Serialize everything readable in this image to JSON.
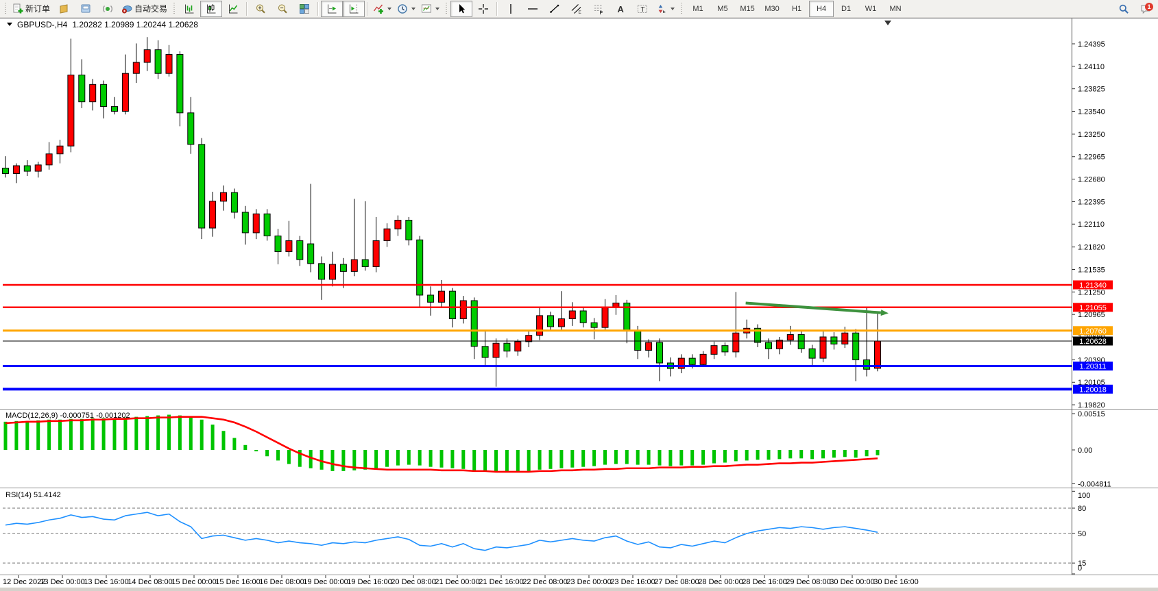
{
  "toolbar": {
    "sections": [
      {
        "groups": [
          [
            {
              "name": "new-order",
              "icon": "new-order",
              "label": "新订单"
            },
            {
              "name": "new-chart",
              "icon": "yellow-note"
            },
            {
              "name": "metaeditor",
              "icon": "editor"
            },
            {
              "name": "signals",
              "icon": "signals"
            },
            {
              "name": "autotrading",
              "icon": "autotrading",
              "label": "自动交易"
            }
          ]
        ]
      },
      {
        "groups": [
          [
            {
              "name": "bar-chart-type",
              "icon": "bars"
            },
            {
              "name": "candlestick-chart-type",
              "icon": "candles",
              "active": true
            },
            {
              "name": "line-chart-type",
              "icon": "line"
            }
          ],
          [
            {
              "name": "zoom-in",
              "icon": "zoom-in"
            },
            {
              "name": "zoom-out",
              "icon": "zoom-out"
            },
            {
              "name": "tile-windows",
              "icon": "tile"
            }
          ],
          [
            {
              "name": "auto-scroll",
              "icon": "autoscroll",
              "active": true
            },
            {
              "name": "chart-shift",
              "icon": "chartshift",
              "active": true
            }
          ],
          [
            {
              "name": "indicators",
              "icon": "indicators",
              "dropdown": true
            },
            {
              "name": "periods",
              "icon": "clock",
              "dropdown": true
            },
            {
              "name": "templates",
              "icon": "template",
              "dropdown": true
            }
          ]
        ]
      },
      {
        "groups": [
          [
            {
              "name": "cursor",
              "icon": "cursor",
              "active": true
            },
            {
              "name": "crosshair",
              "icon": "crosshair"
            }
          ],
          [
            {
              "name": "vertical-line",
              "icon": "vline"
            },
            {
              "name": "horizontal-line",
              "icon": "hline"
            },
            {
              "name": "trendline",
              "icon": "trendline"
            },
            {
              "name": "equidistant-channel",
              "icon": "channel"
            },
            {
              "name": "fibonacci",
              "icon": "fibo"
            },
            {
              "name": "text",
              "icon": "text-a"
            },
            {
              "name": "text-label",
              "icon": "label-t"
            },
            {
              "name": "arrows",
              "icon": "arrows",
              "dropdown": true
            }
          ]
        ]
      },
      {
        "groups": [
          [
            {
              "name": "tf-m1",
              "label": "M1",
              "tf": true
            },
            {
              "name": "tf-m5",
              "label": "M5",
              "tf": true
            },
            {
              "name": "tf-m15",
              "label": "M15",
              "tf": true
            },
            {
              "name": "tf-m30",
              "label": "M30",
              "tf": true
            },
            {
              "name": "tf-h1",
              "label": "H1",
              "tf": true
            },
            {
              "name": "tf-h4",
              "label": "H4",
              "tf": true,
              "active": true
            },
            {
              "name": "tf-d1",
              "label": "D1",
              "tf": true
            },
            {
              "name": "tf-w1",
              "label": "W1",
              "tf": true
            },
            {
              "name": "tf-mn",
              "label": "MN",
              "tf": true
            }
          ]
        ]
      }
    ],
    "right": [
      {
        "name": "search",
        "icon": "search"
      },
      {
        "name": "notifications",
        "icon": "chat",
        "badge": "1"
      }
    ]
  },
  "chart": {
    "title_symbol": "GBPUSD-,H4",
    "title_ohlc": "1.20282 1.20989 1.20244 1.20628"
  },
  "chart_data": {
    "type": "candlestick",
    "symbol": "GBPUSD-",
    "timeframe": "H4",
    "current": {
      "open": "1.20282",
      "high": "1.20989",
      "low": "1.20244",
      "close": "1.20628"
    },
    "colors": {
      "bull": "#FF0000",
      "bear": "#00CC00",
      "wick": "#000000",
      "macd_histogram": "#00C400",
      "macd_signal": "#FF0000",
      "rsi_line": "#1E90FF",
      "arrow": "#3E923E"
    },
    "price_axis_ticks": [
      "1.24395",
      "1.24110",
      "1.23825",
      "1.23540",
      "1.23250",
      "1.22965",
      "1.22680",
      "1.22395",
      "1.22110",
      "1.21820",
      "1.21535",
      "1.21250",
      "1.20965",
      "1.20680",
      "1.20390",
      "1.20105",
      "1.19820"
    ],
    "time_labels": [
      "12 Dec 2022",
      "13 Dec 00:00",
      "13 Dec 16:00",
      "14 Dec 08:00",
      "15 Dec 00:00",
      "15 Dec 16:00",
      "16 Dec 08:00",
      "19 Dec 00:00",
      "19 Dec 16:00",
      "20 Dec 08:00",
      "21 Dec 00:00",
      "21 Dec 16:00",
      "22 Dec 08:00",
      "23 Dec 00:00",
      "23 Dec 16:00",
      "27 Dec 08:00",
      "28 Dec 00:00",
      "28 Dec 16:00",
      "29 Dec 08:00",
      "30 Dec 00:00",
      "30 Dec 16:00"
    ],
    "levels": [
      {
        "price": 1.2134,
        "label": "1.21340",
        "color": "#FF0000",
        "width": 2.5
      },
      {
        "price": 1.21055,
        "label": "1.21055",
        "color": "#FF0000",
        "width": 2.5
      },
      {
        "price": 1.2076,
        "label": "1.20760",
        "color": "#FFA500",
        "width": 3
      },
      {
        "price": 1.20628,
        "label": "1.20628",
        "color": "#000000",
        "width": 1
      },
      {
        "price": 1.20311,
        "label": "1.20311",
        "color": "#0000FF",
        "width": 3
      },
      {
        "price": 1.20018,
        "label": "1.20018",
        "color": "#0000FF",
        "width": 4
      }
    ],
    "candles": [
      [
        1.2282,
        1.2297,
        1.227,
        1.2275
      ],
      [
        1.2275,
        1.2288,
        1.2263,
        1.2285
      ],
      [
        1.2285,
        1.2292,
        1.2272,
        1.2278
      ],
      [
        1.2278,
        1.229,
        1.227,
        1.2286
      ],
      [
        1.2286,
        1.2315,
        1.228,
        1.23
      ],
      [
        1.23,
        1.2318,
        1.2288,
        1.231
      ],
      [
        1.231,
        1.2446,
        1.2302,
        1.24
      ],
      [
        1.24,
        1.242,
        1.2358,
        1.2366
      ],
      [
        1.2366,
        1.2395,
        1.2355,
        1.2388
      ],
      [
        1.2388,
        1.2393,
        1.2345,
        1.236
      ],
      [
        1.236,
        1.2372,
        1.235,
        1.2354
      ],
      [
        1.2354,
        1.2426,
        1.235,
        1.2402
      ],
      [
        1.2402,
        1.244,
        1.239,
        1.2416
      ],
      [
        1.2416,
        1.2448,
        1.2405,
        1.2432
      ],
      [
        1.2432,
        1.2444,
        1.2395,
        1.2402
      ],
      [
        1.2402,
        1.2438,
        1.2398,
        1.2426
      ],
      [
        1.2426,
        1.243,
        1.2335,
        1.2352
      ],
      [
        1.2352,
        1.2372,
        1.23,
        1.2312
      ],
      [
        1.2312,
        1.232,
        1.2192,
        1.2206
      ],
      [
        1.2206,
        1.2252,
        1.2195,
        1.224
      ],
      [
        1.224,
        1.226,
        1.2228,
        1.2251
      ],
      [
        1.2251,
        1.2256,
        1.2218,
        1.2226
      ],
      [
        1.2226,
        1.2234,
        1.2185,
        1.22
      ],
      [
        1.22,
        1.223,
        1.2192,
        1.2224
      ],
      [
        1.2224,
        1.223,
        1.219,
        1.2196
      ],
      [
        1.2196,
        1.2205,
        1.216,
        1.2176
      ],
      [
        1.2176,
        1.2215,
        1.217,
        1.219
      ],
      [
        1.219,
        1.2196,
        1.2158,
        1.2166
      ],
      [
        1.2186,
        1.2262,
        1.215,
        1.2161
      ],
      [
        1.2161,
        1.217,
        1.2115,
        1.2141
      ],
      [
        1.2141,
        1.2176,
        1.2132,
        1.216
      ],
      [
        1.216,
        1.2168,
        1.213,
        1.2151
      ],
      [
        1.2151,
        1.2243,
        1.2145,
        1.2166
      ],
      [
        1.2166,
        1.224,
        1.2152,
        1.2157
      ],
      [
        1.2157,
        1.222,
        1.215,
        1.219
      ],
      [
        1.219,
        1.2212,
        1.2182,
        1.2205
      ],
      [
        1.2205,
        1.2222,
        1.2196,
        1.2216
      ],
      [
        1.2216,
        1.222,
        1.2184,
        1.2191
      ],
      [
        1.2191,
        1.2196,
        1.2105,
        1.2121
      ],
      [
        1.2121,
        1.2132,
        1.2095,
        1.2112
      ],
      [
        1.2112,
        1.214,
        1.2105,
        1.2126
      ],
      [
        1.2126,
        1.213,
        1.208,
        1.2091
      ],
      [
        1.2091,
        1.212,
        1.2085,
        1.2114
      ],
      [
        1.2114,
        1.2118,
        1.204,
        1.2056
      ],
      [
        1.2056,
        1.2075,
        1.203,
        1.2042
      ],
      [
        1.2042,
        1.2066,
        1.2005,
        1.206
      ],
      [
        1.206,
        1.2066,
        1.2042,
        1.205
      ],
      [
        1.205,
        1.2065,
        1.2044,
        1.2062
      ],
      [
        1.2062,
        1.2076,
        1.2055,
        1.207
      ],
      [
        1.207,
        1.2106,
        1.2064,
        1.2095
      ],
      [
        1.2095,
        1.21,
        1.2075,
        1.2081
      ],
      [
        1.2081,
        1.2126,
        1.2076,
        1.2091
      ],
      [
        1.2091,
        1.2112,
        1.2082,
        1.2101
      ],
      [
        1.2101,
        1.2106,
        1.208,
        1.2086
      ],
      [
        1.2086,
        1.2092,
        1.2065,
        1.208
      ],
      [
        1.208,
        1.2116,
        1.2076,
        1.2106
      ],
      [
        1.2106,
        1.2121,
        1.2096,
        1.2111
      ],
      [
        1.2111,
        1.2115,
        1.206,
        1.2076
      ],
      [
        1.2076,
        1.2082,
        1.204,
        1.2051
      ],
      [
        1.2051,
        1.2065,
        1.2042,
        1.2061
      ],
      [
        1.2061,
        1.2066,
        1.2012,
        1.2035
      ],
      [
        1.2035,
        1.2042,
        1.2018,
        1.2028
      ],
      [
        1.2028,
        1.2046,
        1.2022,
        1.2041
      ],
      [
        1.2041,
        1.2046,
        1.2028,
        1.2033
      ],
      [
        1.2033,
        1.205,
        1.203,
        1.2046
      ],
      [
        1.2046,
        1.2062,
        1.204,
        1.2057
      ],
      [
        1.2057,
        1.2061,
        1.2044,
        1.2049
      ],
      [
        1.2049,
        1.2125,
        1.2042,
        1.2073
      ],
      [
        1.2073,
        1.209,
        1.2066,
        1.2079
      ],
      [
        1.2079,
        1.2084,
        1.2055,
        1.2061
      ],
      [
        1.2061,
        1.2066,
        1.204,
        1.2053
      ],
      [
        1.2053,
        1.2068,
        1.2046,
        1.2064
      ],
      [
        1.2064,
        1.2082,
        1.2058,
        1.2071
      ],
      [
        1.2071,
        1.2076,
        1.2048,
        1.2053
      ],
      [
        1.2053,
        1.2058,
        1.203,
        1.2041
      ],
      [
        1.2041,
        1.2076,
        1.2036,
        1.2068
      ],
      [
        1.2068,
        1.2074,
        1.2052,
        1.2059
      ],
      [
        1.2059,
        1.2081,
        1.2054,
        1.2073
      ],
      [
        1.2073,
        1.2078,
        1.2012,
        1.2039
      ],
      [
        1.2039,
        1.2106,
        1.2018,
        1.2027
      ],
      [
        1.20282,
        1.20989,
        1.20244,
        1.20628
      ]
    ],
    "macd": {
      "label": "MACD(12,26,9) -0.000751 -0.001202",
      "value_main": "-0.000751",
      "value_signal": "-0.001202",
      "axis_labels": [
        "0.00515",
        "0.00",
        "-0.004811"
      ],
      "histogram": [
        0.004,
        0.0041,
        0.0041,
        0.0042,
        0.0043,
        0.0043,
        0.0044,
        0.0044,
        0.0045,
        0.0045,
        0.0045,
        0.0046,
        0.0047,
        0.0048,
        0.0049,
        0.005,
        0.0049,
        0.0047,
        0.0043,
        0.0036,
        0.0027,
        0.0017,
        0.0007,
        -0.0002,
        -0.0009,
        -0.0015,
        -0.002,
        -0.0024,
        -0.0026,
        -0.0028,
        -0.003,
        -0.003,
        -0.0029,
        -0.0028,
        -0.0026,
        -0.0024,
        -0.0022,
        -0.0021,
        -0.0022,
        -0.0024,
        -0.0025,
        -0.0026,
        -0.0027,
        -0.0029,
        -0.0031,
        -0.0032,
        -0.0032,
        -0.0031,
        -0.003,
        -0.0028,
        -0.0027,
        -0.0026,
        -0.0025,
        -0.0024,
        -0.0023,
        -0.0021,
        -0.002,
        -0.002,
        -0.0021,
        -0.0021,
        -0.0022,
        -0.0023,
        -0.0022,
        -0.0022,
        -0.0021,
        -0.0019,
        -0.0018,
        -0.0016,
        -0.0015,
        -0.0014,
        -0.0014,
        -0.0013,
        -0.0012,
        -0.0012,
        -0.0013,
        -0.0012,
        -0.0011,
        -0.001,
        -0.0011,
        -0.0009,
        -0.00075
      ],
      "signal": [
        0.0038,
        0.0039,
        0.004,
        0.004,
        0.0041,
        0.0041,
        0.0042,
        0.0042,
        0.0043,
        0.0043,
        0.0044,
        0.0044,
        0.0045,
        0.0045,
        0.0046,
        0.0046,
        0.0047,
        0.0047,
        0.0047,
        0.0045,
        0.0043,
        0.0039,
        0.0033,
        0.0026,
        0.0018,
        0.001,
        0.0002,
        -0.0005,
        -0.0011,
        -0.0016,
        -0.002,
        -0.0023,
        -0.0025,
        -0.0026,
        -0.0027,
        -0.0028,
        -0.0028,
        -0.0028,
        -0.0028,
        -0.0028,
        -0.0029,
        -0.0029,
        -0.0029,
        -0.003,
        -0.003,
        -0.0031,
        -0.0031,
        -0.0031,
        -0.0031,
        -0.003,
        -0.003,
        -0.0029,
        -0.0029,
        -0.0028,
        -0.0028,
        -0.0027,
        -0.0027,
        -0.0026,
        -0.0026,
        -0.0026,
        -0.0025,
        -0.0025,
        -0.0025,
        -0.0024,
        -0.0024,
        -0.0023,
        -0.0023,
        -0.0022,
        -0.0021,
        -0.0021,
        -0.002,
        -0.0019,
        -0.0019,
        -0.0018,
        -0.0018,
        -0.0017,
        -0.0016,
        -0.0015,
        -0.0014,
        -0.0013,
        -0.0012
      ]
    },
    "rsi": {
      "label": "RSI(14) 51.4142",
      "value": "51.4142",
      "axis_labels": [
        "100",
        "80",
        "50",
        "15",
        "0"
      ],
      "dashed_levels": [
        80,
        50,
        15
      ],
      "values": [
        60,
        62,
        61,
        63,
        66,
        68,
        72,
        69,
        70,
        67,
        66,
        71,
        73,
        75,
        71,
        73,
        64,
        58,
        44,
        47,
        48,
        45,
        42,
        44,
        42,
        39,
        41,
        39,
        38,
        36,
        39,
        38,
        40,
        39,
        42,
        44,
        46,
        43,
        36,
        35,
        38,
        34,
        38,
        32,
        30,
        34,
        33,
        35,
        37,
        42,
        40,
        42,
        44,
        42,
        41,
        45,
        47,
        41,
        37,
        40,
        34,
        33,
        37,
        35,
        38,
        41,
        39,
        45,
        50,
        53,
        55,
        57,
        56,
        58,
        57,
        55,
        57,
        58,
        56,
        54,
        51.41
      ]
    },
    "annotations": [
      {
        "type": "arrow",
        "from_bar": 67.9,
        "from_price": 1.2111,
        "to_bar": 81.0,
        "to_price": 1.2098,
        "color": "#3E923E",
        "width": 4
      }
    ]
  }
}
